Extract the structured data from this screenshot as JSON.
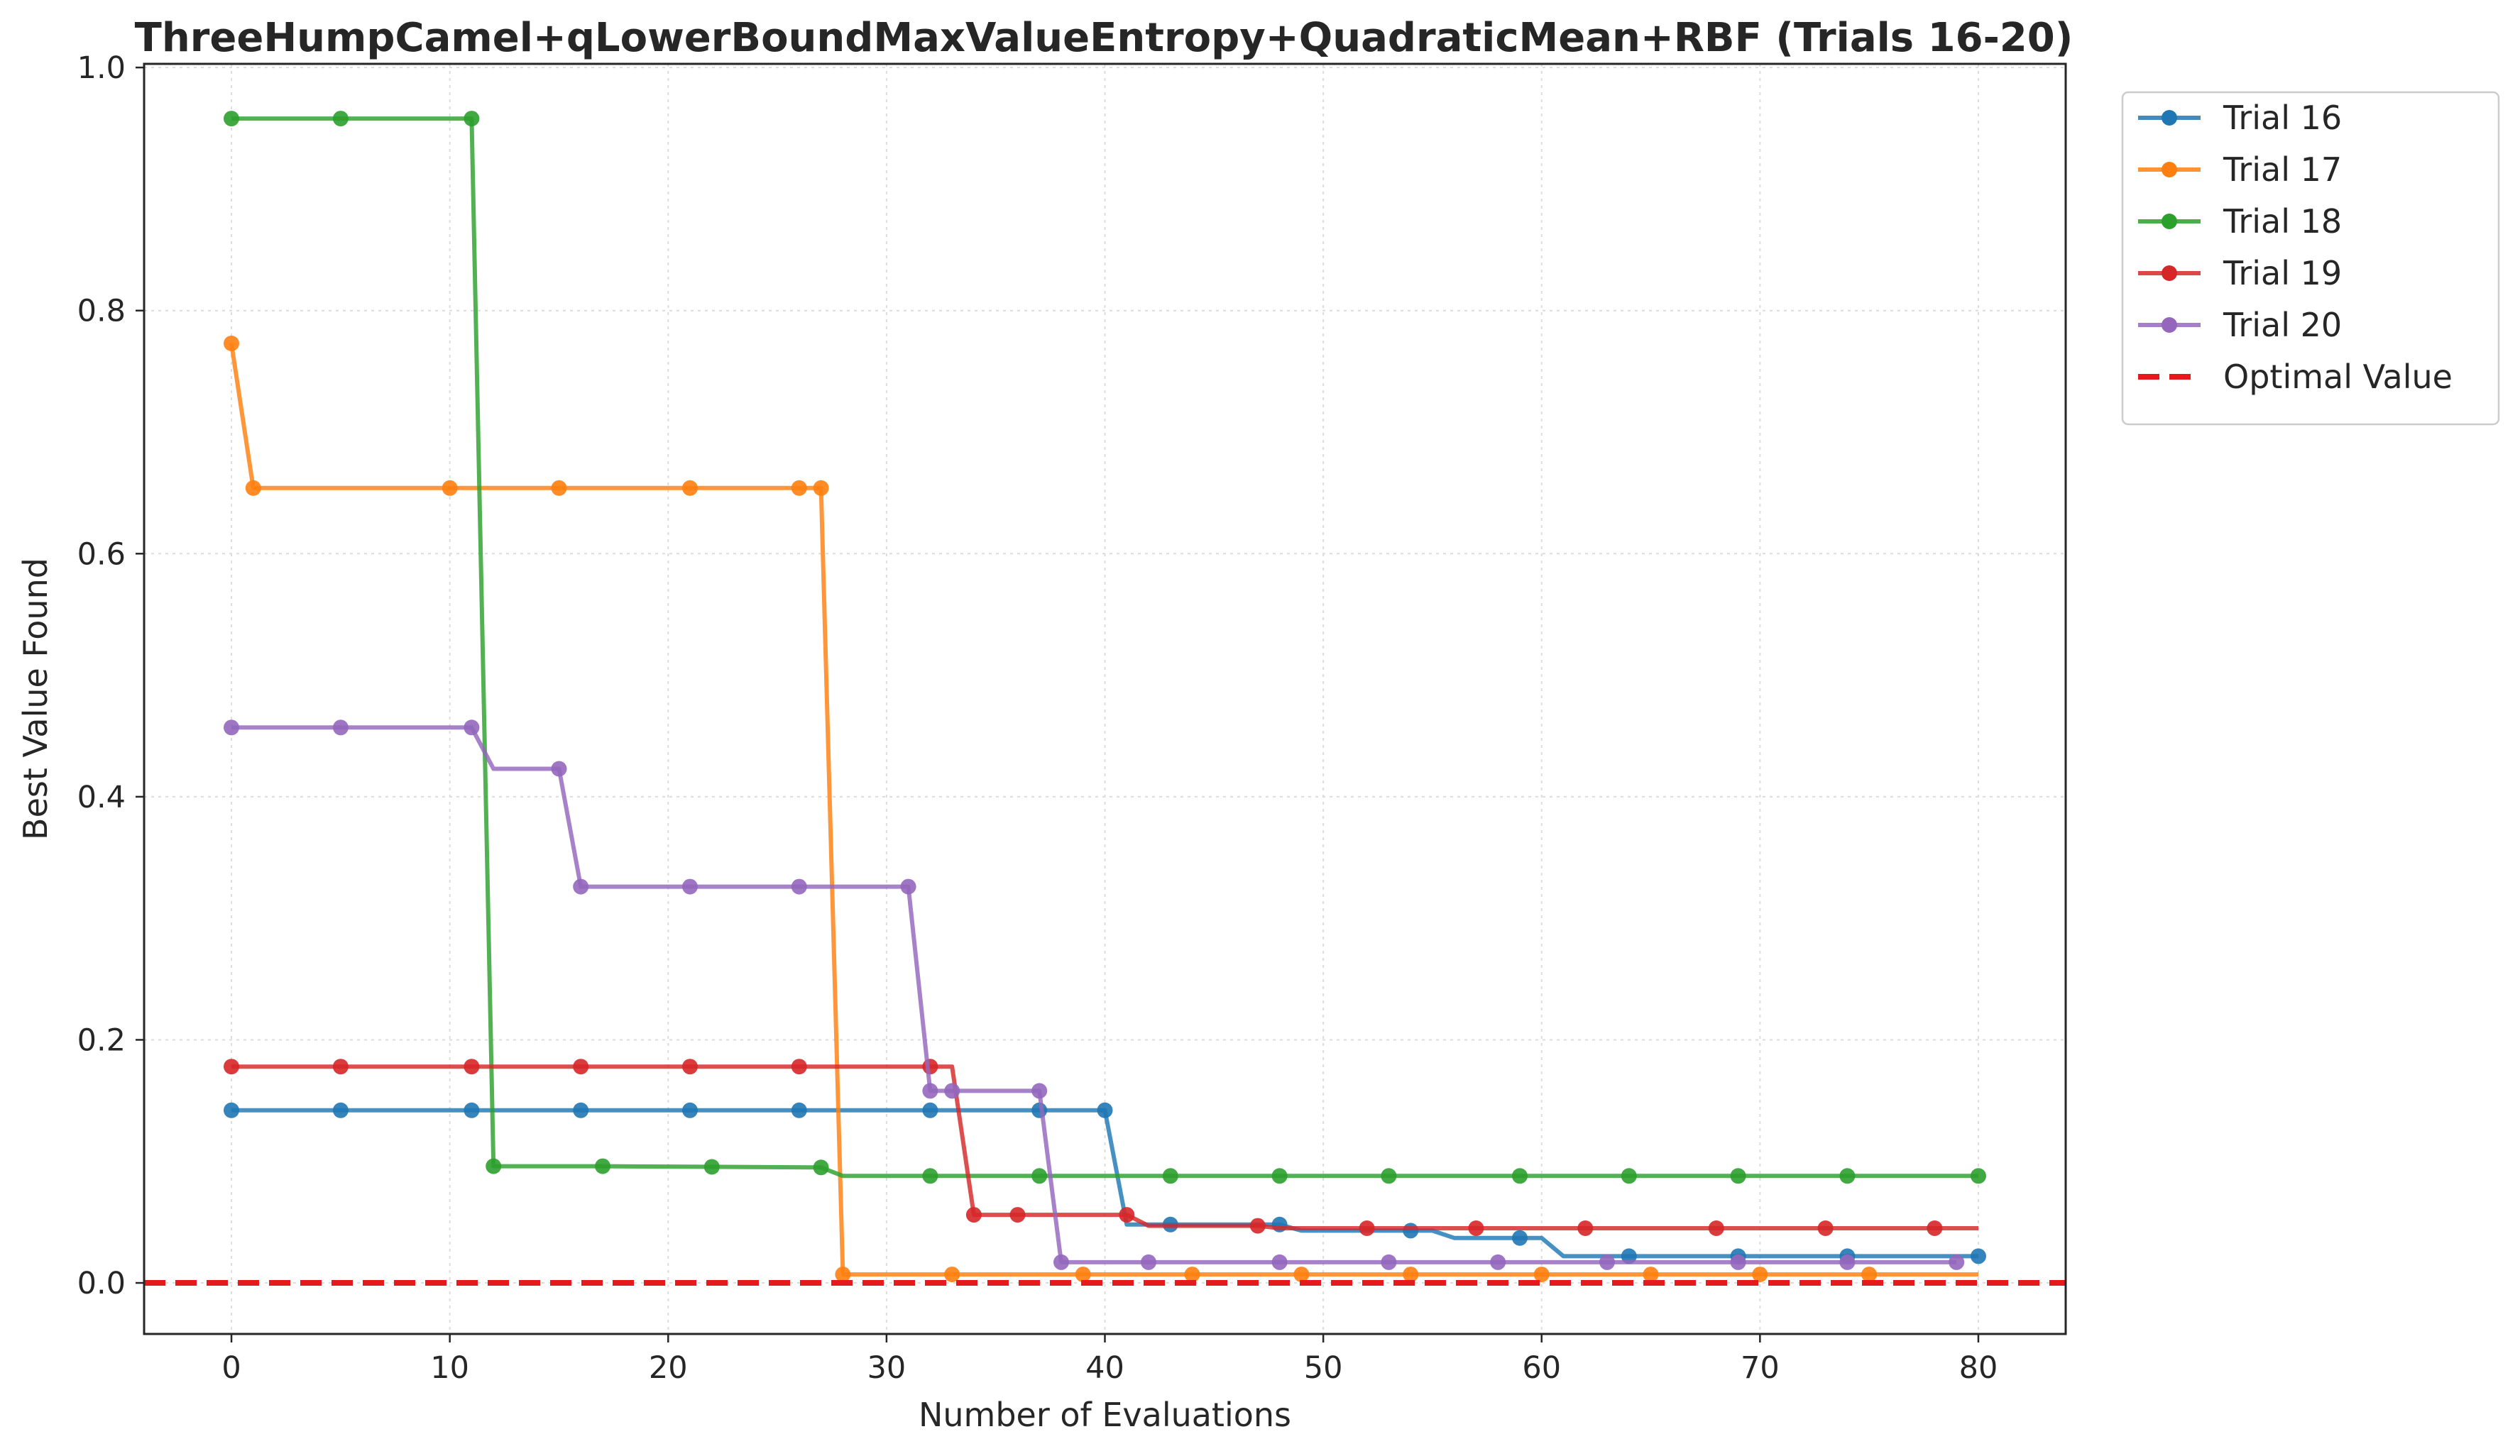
{
  "chart_data": {
    "type": "line",
    "title": "ThreeHumpCamel+qLowerBoundMaxValueEntropy+QuadraticMean+RBF (Trials 16-20)",
    "xlabel": "Number of Evaluations",
    "ylabel": "Best Value Found",
    "xlim": [
      -4,
      84
    ],
    "ylim": [
      -0.042,
      1.003
    ],
    "xticks": [
      0,
      10,
      20,
      30,
      40,
      50,
      60,
      70,
      80
    ],
    "yticks": [
      0.0,
      0.2,
      0.4,
      0.6,
      0.8,
      1.0
    ],
    "xtick_labels": [
      "0",
      "10",
      "20",
      "30",
      "40",
      "50",
      "60",
      "70",
      "80"
    ],
    "ytick_labels": [
      "0.0",
      "0.2",
      "0.4",
      "0.6",
      "0.8",
      "1.0"
    ],
    "grid": true,
    "legend_position": "outside-top-right",
    "series": [
      {
        "name": "Trial 16",
        "color": "#1f77b4",
        "points": [
          [
            0,
            0.142
          ],
          [
            40,
            0.142
          ],
          [
            41,
            0.048
          ],
          [
            47,
            0.048
          ],
          [
            48,
            0.048
          ],
          [
            49,
            0.043
          ],
          [
            55,
            0.043
          ],
          [
            56,
            0.037
          ],
          [
            60,
            0.037
          ],
          [
            61,
            0.022
          ],
          [
            80,
            0.022
          ]
        ],
        "markers": [
          0,
          5,
          11,
          16,
          21,
          26,
          32,
          37,
          40,
          43,
          48,
          54,
          59,
          64,
          69,
          74,
          80
        ]
      },
      {
        "name": "Trial 17",
        "color": "#ff7f0e",
        "points": [
          [
            0,
            0.773
          ],
          [
            1,
            0.654
          ],
          [
            27,
            0.654
          ],
          [
            28,
            0.007
          ],
          [
            80,
            0.007
          ]
        ],
        "markers": [
          0,
          1,
          10,
          15,
          21,
          26,
          27,
          28,
          33,
          39,
          44,
          49,
          54,
          60,
          65,
          70,
          75
        ]
      },
      {
        "name": "Trial 18",
        "color": "#2ca02c",
        "points": [
          [
            0,
            0.958
          ],
          [
            11,
            0.958
          ],
          [
            12,
            0.096
          ],
          [
            17,
            0.096
          ],
          [
            27,
            0.095
          ],
          [
            28,
            0.088
          ],
          [
            80,
            0.088
          ]
        ],
        "markers": [
          0,
          5,
          11,
          12,
          17,
          22,
          27,
          32,
          37,
          43,
          48,
          53,
          59,
          64,
          69,
          74,
          80
        ]
      },
      {
        "name": "Trial 19",
        "color": "#d62728",
        "points": [
          [
            0,
            0.178
          ],
          [
            33,
            0.178
          ],
          [
            34,
            0.056
          ],
          [
            41,
            0.056
          ],
          [
            42,
            0.047
          ],
          [
            47,
            0.047
          ],
          [
            48,
            0.045
          ],
          [
            80,
            0.045
          ]
        ],
        "markers": [
          0,
          5,
          11,
          16,
          21,
          26,
          32,
          34,
          36,
          41,
          47,
          52,
          57,
          62,
          68,
          73,
          78
        ]
      },
      {
        "name": "Trial 20",
        "color": "#9467bd",
        "points": [
          [
            0,
            0.457
          ],
          [
            11,
            0.457
          ],
          [
            12,
            0.423
          ],
          [
            15,
            0.423
          ],
          [
            16,
            0.326
          ],
          [
            31,
            0.326
          ],
          [
            32,
            0.158
          ],
          [
            37,
            0.158
          ],
          [
            38,
            0.017
          ],
          [
            79,
            0.017
          ]
        ],
        "markers": [
          0,
          5,
          11,
          15,
          16,
          21,
          26,
          31,
          32,
          33,
          37,
          38,
          42,
          48,
          53,
          58,
          63,
          69,
          74,
          79
        ]
      }
    ],
    "reference_line": {
      "name": "Optimal Value",
      "y": 0.0,
      "color": "#e41a1c",
      "style": "dashed"
    }
  }
}
